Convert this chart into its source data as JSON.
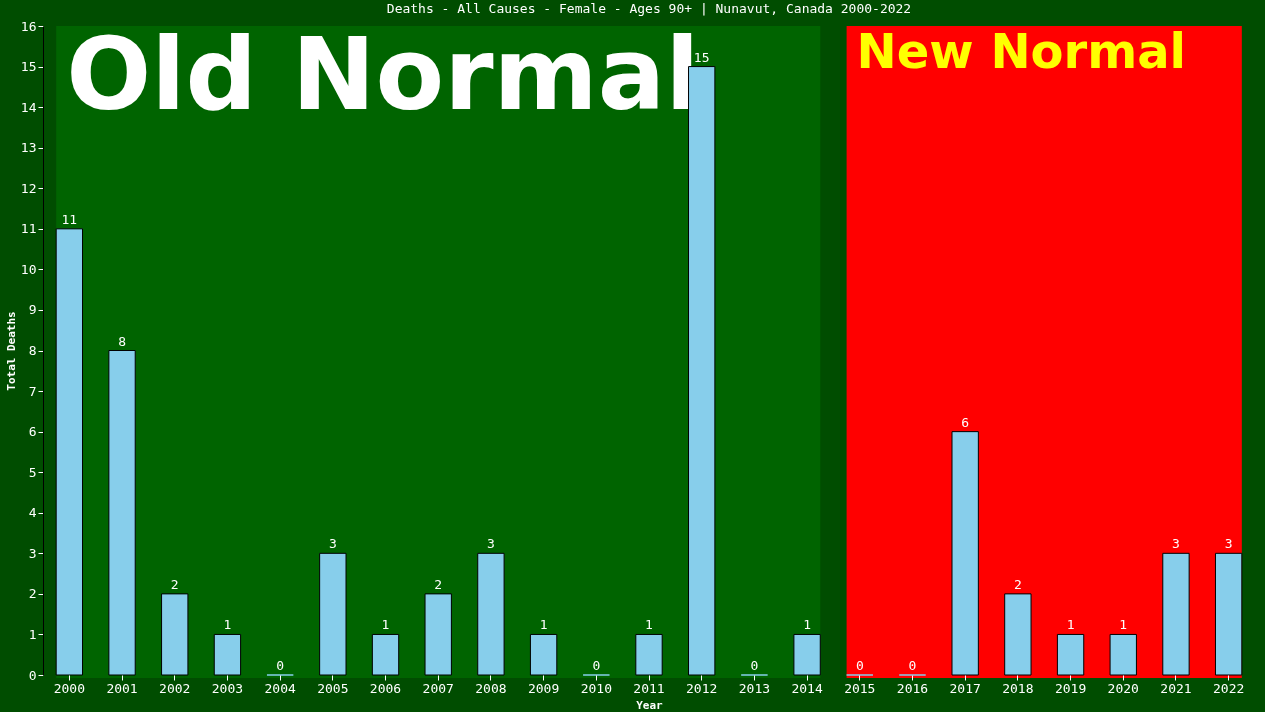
{
  "chart_data": {
    "type": "bar",
    "title": "Deaths - All Causes - Female - Ages 90+ | Nunavut, Canada 2000-2022",
    "xlabel": "Year",
    "ylabel": "Total Deaths",
    "categories": [
      "2000",
      "2001",
      "2002",
      "2003",
      "2004",
      "2005",
      "2006",
      "2007",
      "2008",
      "2009",
      "2010",
      "2011",
      "2012",
      "2013",
      "2014",
      "2015",
      "2016",
      "2017",
      "2018",
      "2019",
      "2020",
      "2021",
      "2022"
    ],
    "values": [
      11,
      8,
      2,
      1,
      0,
      3,
      1,
      2,
      3,
      1,
      0,
      1,
      15,
      0,
      1,
      0,
      0,
      6,
      2,
      1,
      1,
      3,
      3
    ],
    "color": "#87ceeb",
    "ylim": [
      0,
      16
    ],
    "yticks": [
      0,
      1,
      2,
      3,
      4,
      5,
      6,
      7,
      8,
      9,
      10,
      11,
      12,
      13,
      14,
      15,
      16
    ],
    "grid": false,
    "data_labels": true,
    "bands": [
      {
        "axis": "x",
        "from": "2000",
        "to": "2014",
        "label": "Old Normal",
        "color": "#006400"
      },
      {
        "axis": "x",
        "from": "2015",
        "to": "2022",
        "label": "New Normal",
        "color": "#ff0000"
      }
    ]
  }
}
